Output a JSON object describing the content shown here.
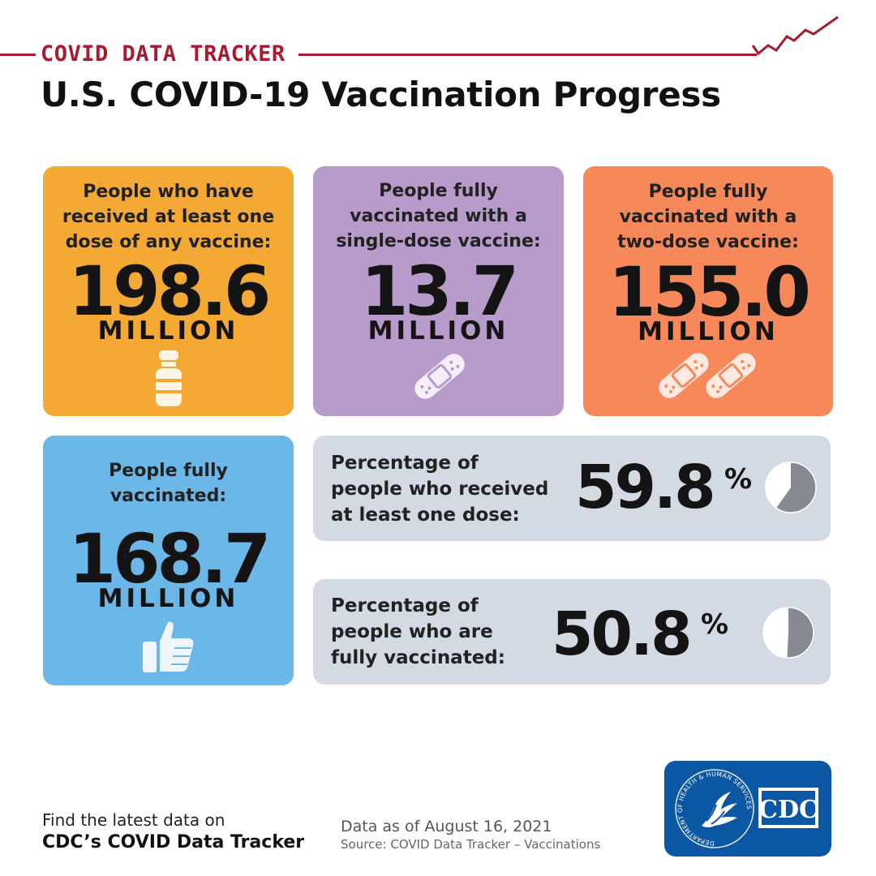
{
  "header": {
    "tracker_label": "COVID DATA TRACKER",
    "title": "U.S. COVID-19 Vaccination Progress",
    "accent_color": "#a51c30"
  },
  "cards": {
    "at_least_one_dose": {
      "label_lines": [
        "People who have",
        "received at least one",
        "dose of any vaccine:"
      ],
      "value": "198.6",
      "unit": "MILLION",
      "icon": "vaccine-vial-icon",
      "color": "#f5a935"
    },
    "single_dose": {
      "label_lines": [
        "People fully",
        "vaccinated with a",
        "single-dose vaccine:"
      ],
      "value": "13.7",
      "unit": "MILLION",
      "icon": "bandage-icon",
      "color": "#b79bca"
    },
    "two_dose": {
      "label_lines": [
        "People fully",
        "vaccinated with a",
        "two-dose vaccine:"
      ],
      "value": "155.0",
      "unit": "MILLION",
      "icon": "two-bandages-icon",
      "color": "#f6885a"
    },
    "fully_vaccinated": {
      "label_lines": [
        "People fully",
        "vaccinated:"
      ],
      "value": "168.7",
      "unit": "MILLION",
      "icon": "thumbs-up-icon",
      "color": "#6bb7e8"
    }
  },
  "percentages": {
    "one_dose": {
      "label_lines": [
        "Percentage of",
        "people who received",
        "at least one dose:"
      ],
      "value": "59.8",
      "sign": "%",
      "fraction": 0.598,
      "icon": "pie-chart-icon"
    },
    "fully": {
      "label_lines": [
        "Percentage of",
        "people who are",
        "fully vaccinated:"
      ],
      "value": "50.8",
      "sign": "%",
      "fraction": 0.508,
      "icon": "pie-chart-icon"
    },
    "card_color": "#d3dae4",
    "pie_fill_color": "#868b93"
  },
  "footer": {
    "line1": "Find the latest data on",
    "line2": "CDC’s COVID Data Tracker",
    "date": "Data as of August 16, 2021",
    "source": "Source: COVID Data Tracker – Vaccinations",
    "logo": {
      "seal_text": "DEPARTMENT OF HEALTH & HUMAN SERVICES·USA",
      "wordmark": "CDC",
      "color": "#0b57a4"
    }
  }
}
